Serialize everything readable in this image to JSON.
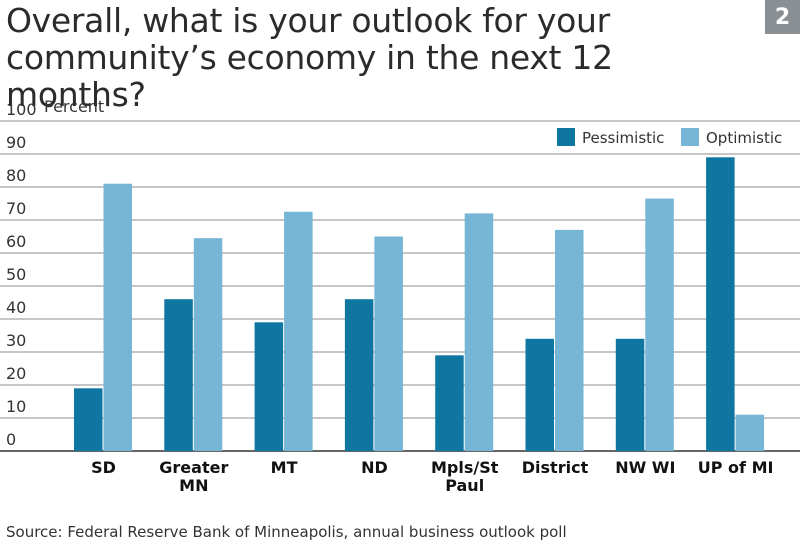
{
  "title": "Overall, what is your outlook for your community’s economy in the next 12 months?",
  "figure_number": "2",
  "source": "Source: Federal Reserve Bank of Minneapolis, annual business outlook poll",
  "chart_data": {
    "type": "bar",
    "title": "Overall, what is your outlook for your community’s economy in the next 12 months?",
    "ylabel": "Percent",
    "xlabel": "",
    "ylim": [
      0,
      100
    ],
    "yticks": [
      0,
      10,
      20,
      30,
      40,
      50,
      60,
      70,
      80,
      90,
      100
    ],
    "grid": true,
    "legend": "top-right",
    "categories": [
      [
        "SD"
      ],
      [
        "Greater",
        "MN"
      ],
      [
        "MT"
      ],
      [
        "ND"
      ],
      [
        "Mpls/St",
        "Paul"
      ],
      [
        "District"
      ],
      [
        "NW WI"
      ],
      [
        "UP of MI"
      ]
    ],
    "series": [
      {
        "name": "Pessimistic",
        "color": "#0e76a0",
        "values": [
          19,
          46,
          39,
          46,
          29,
          34,
          34,
          89
        ]
      },
      {
        "name": "Optimistic",
        "color": "#76b5d6",
        "values": [
          81,
          64.5,
          72.5,
          65,
          72,
          67,
          76.5,
          11
        ]
      }
    ]
  }
}
